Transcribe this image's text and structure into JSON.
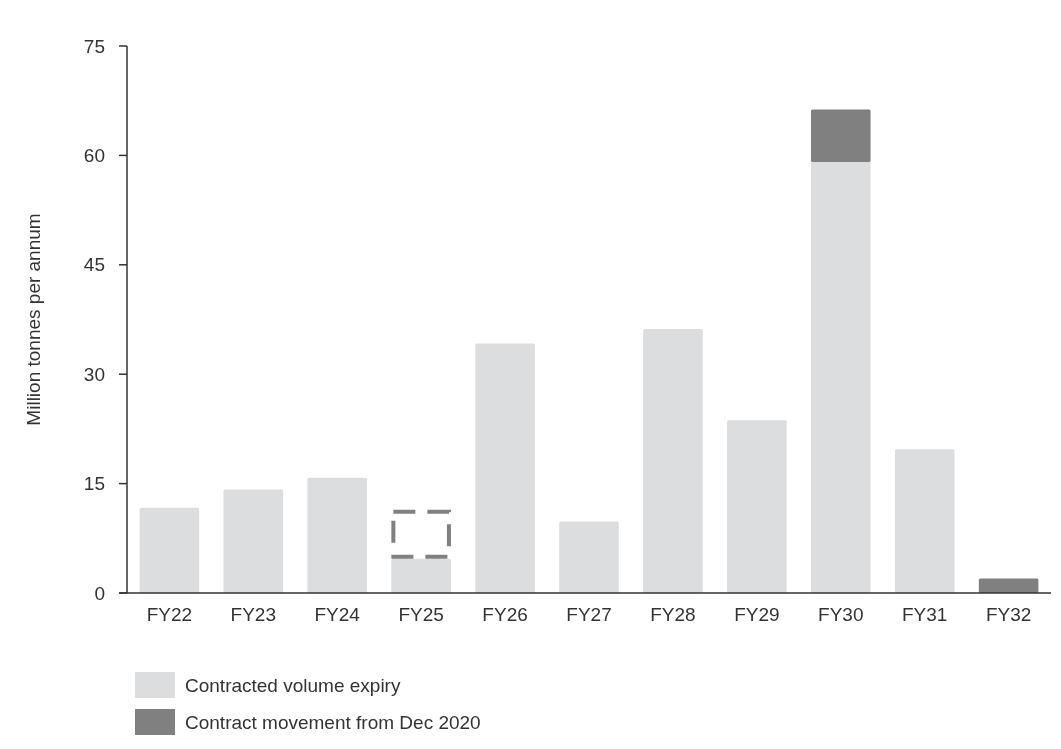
{
  "chart_data": {
    "type": "bar",
    "ylabel": "Million tonnes per annum",
    "stacked": true,
    "categories": [
      "FY22",
      "FY23",
      "FY24",
      "FY25",
      "FY26",
      "FY27",
      "FY28",
      "FY29",
      "FY30",
      "FY31",
      "FY32"
    ],
    "series": [
      {
        "name": "Contracted volume expiry",
        "color": "#dcdddf",
        "values": [
          11.7,
          14.2,
          15.8,
          4.7,
          34.2,
          9.8,
          36.2,
          23.7,
          59.1,
          19.7,
          null
        ]
      },
      {
        "name": "Contract movement from Dec 2020",
        "color": "#808080",
        "values": [
          null,
          null,
          null,
          null,
          null,
          null,
          null,
          null,
          7.2,
          null,
          2.0
        ]
      },
      {
        "color": "#808080",
        "line_style": "dashed",
        "values": [
          null,
          null,
          null,
          6.7,
          null,
          null,
          null,
          null,
          null,
          null,
          null
        ]
      }
    ],
    "ylim": [
      0,
      75
    ],
    "yticks": [
      0,
      15,
      30,
      45,
      60,
      75
    ],
    "legend": "bottom left"
  }
}
